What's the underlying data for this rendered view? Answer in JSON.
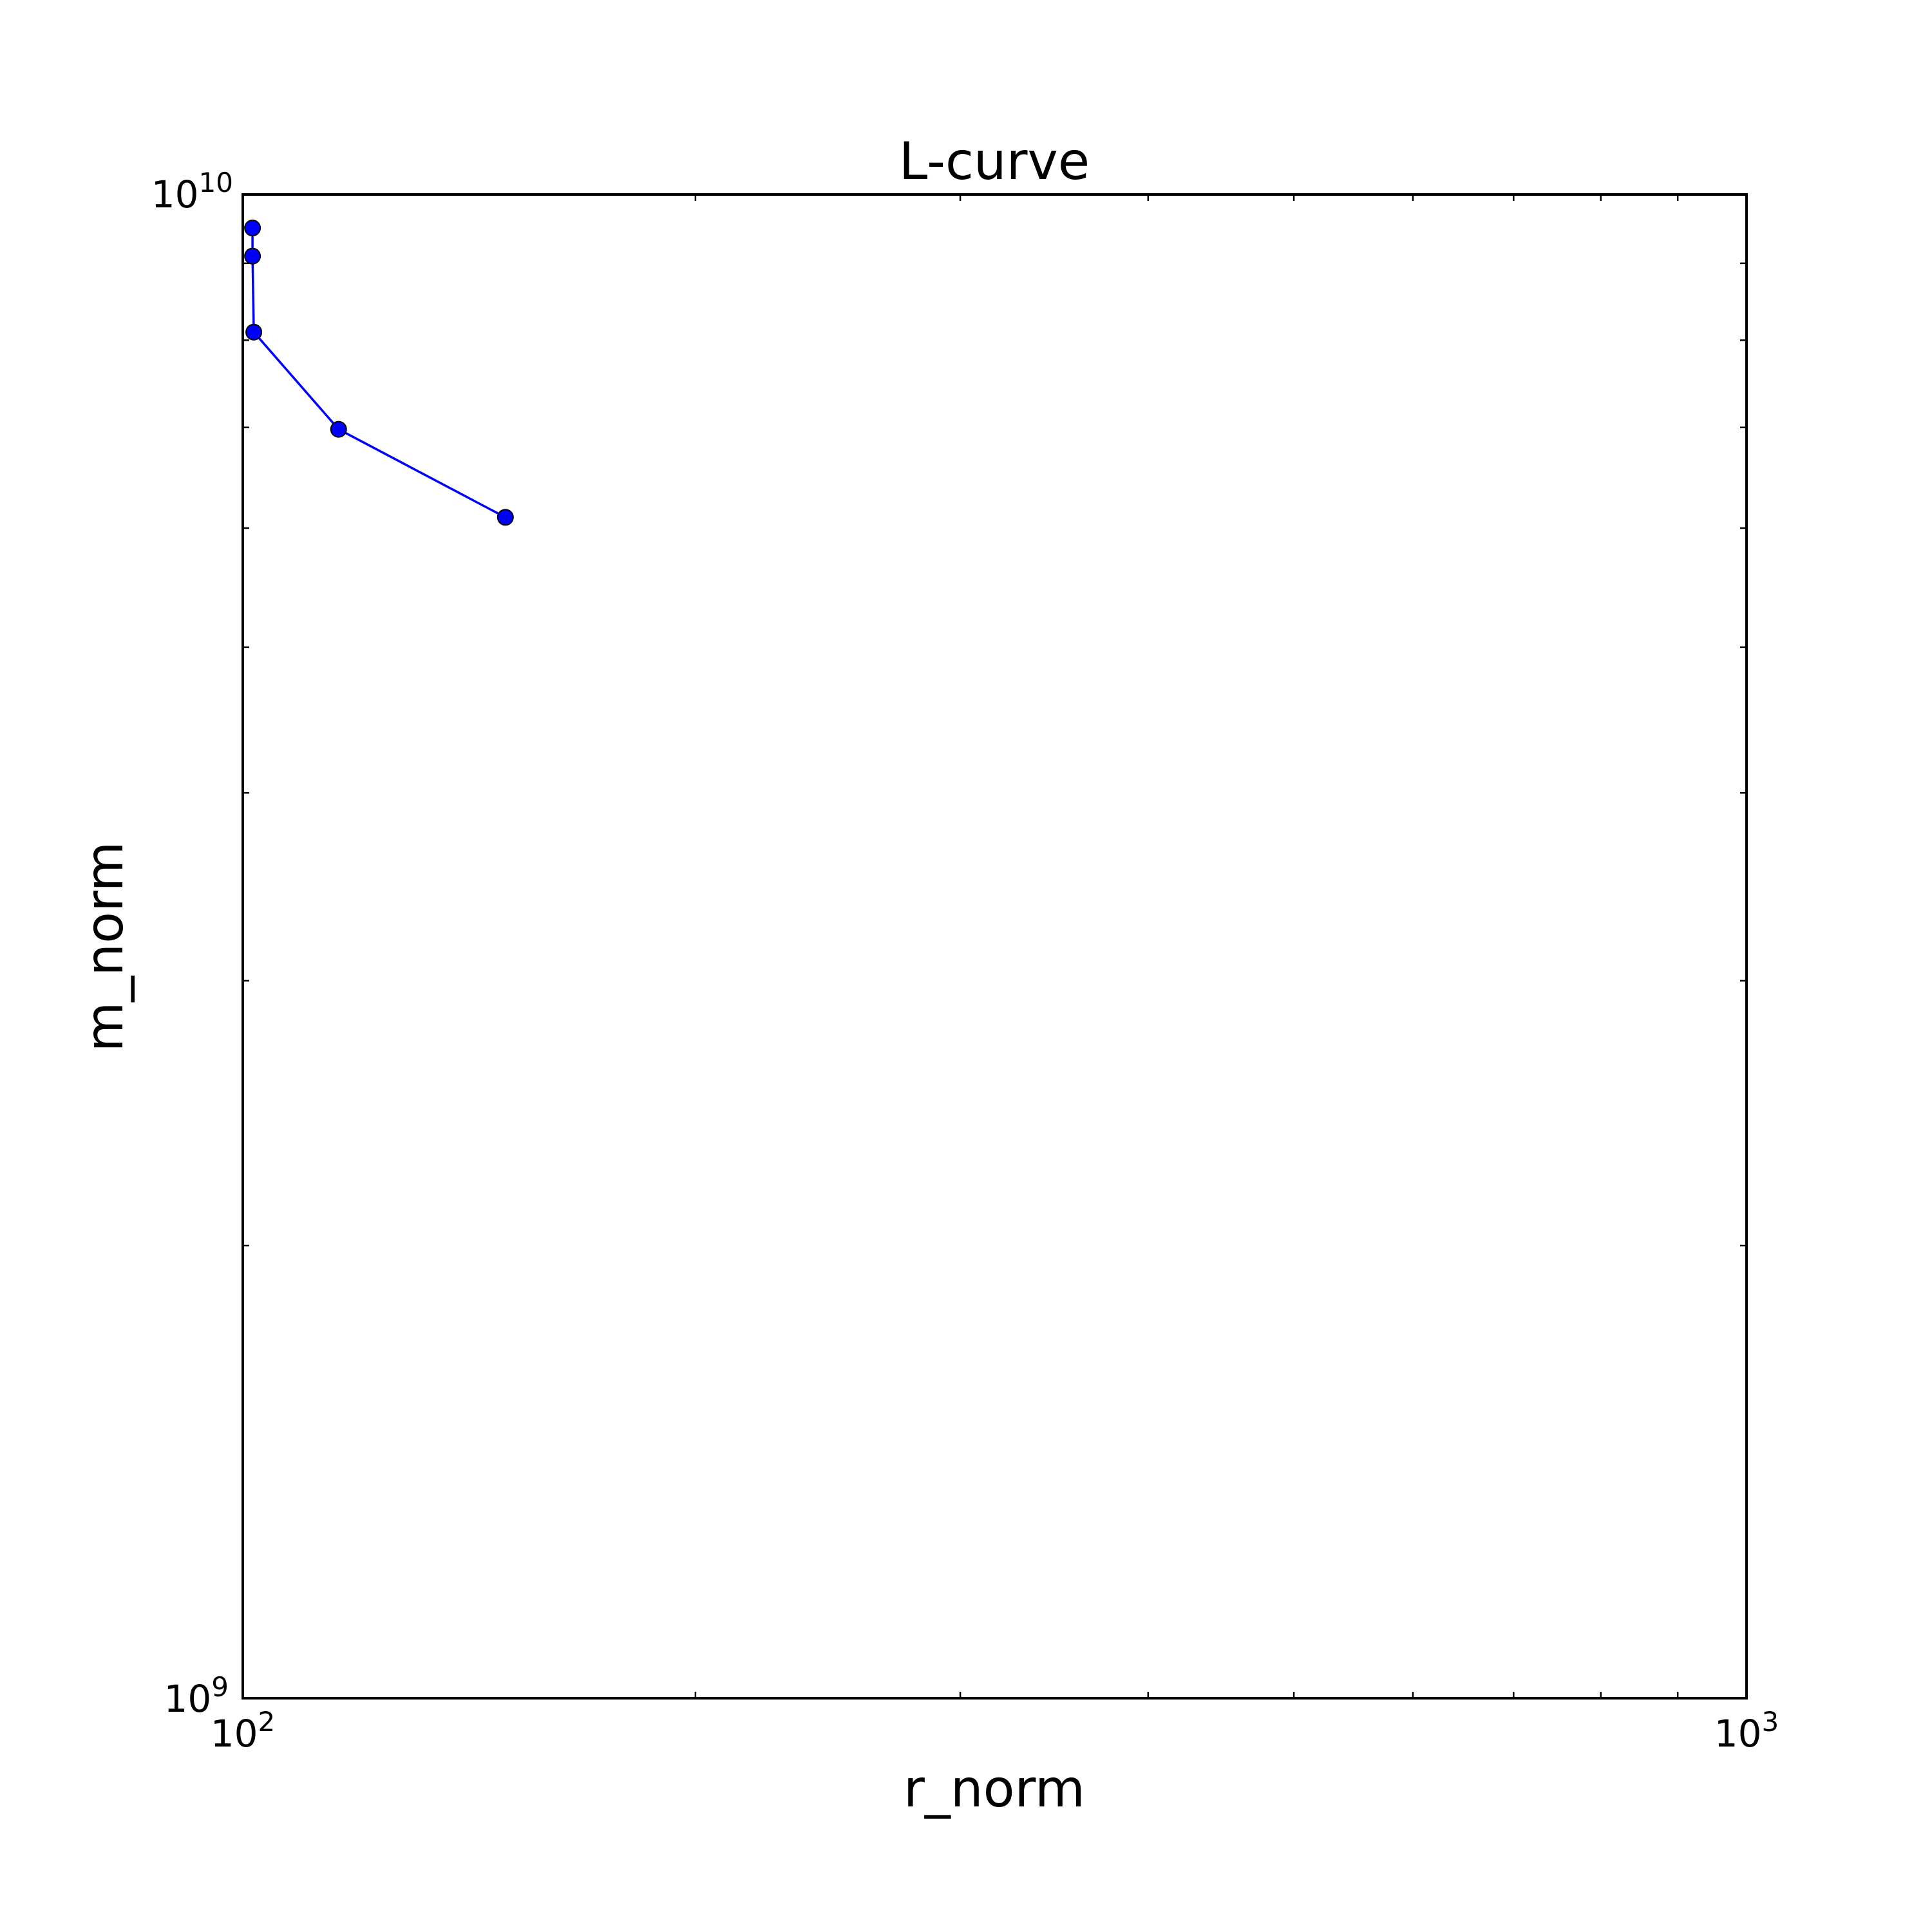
{
  "chart_data": {
    "type": "line",
    "title": "L-curve",
    "xlabel": "r_norm",
    "ylabel": "m_norm",
    "xscale": "log",
    "yscale": "log",
    "xlim": [
      100,
      1000
    ],
    "ylim": [
      1000000000,
      10000000000
    ],
    "x_ticks": [
      {
        "base": "10",
        "exp": "2",
        "value": 100
      },
      {
        "base": "10",
        "exp": "3",
        "value": 1000
      }
    ],
    "y_ticks": [
      {
        "base": "10",
        "exp": "9",
        "value": 1000000000
      },
      {
        "base": "10",
        "exp": "10",
        "value": 10000000000
      }
    ],
    "grid": false,
    "series": [
      {
        "color": "#0000ff",
        "marker": "circle",
        "x": [
          101.5,
          101.5,
          101.7,
          115.8,
          149.5
        ],
        "y": [
          9500000000,
          9100000000,
          8100000000,
          6980000000,
          6100000000
        ]
      }
    ]
  }
}
